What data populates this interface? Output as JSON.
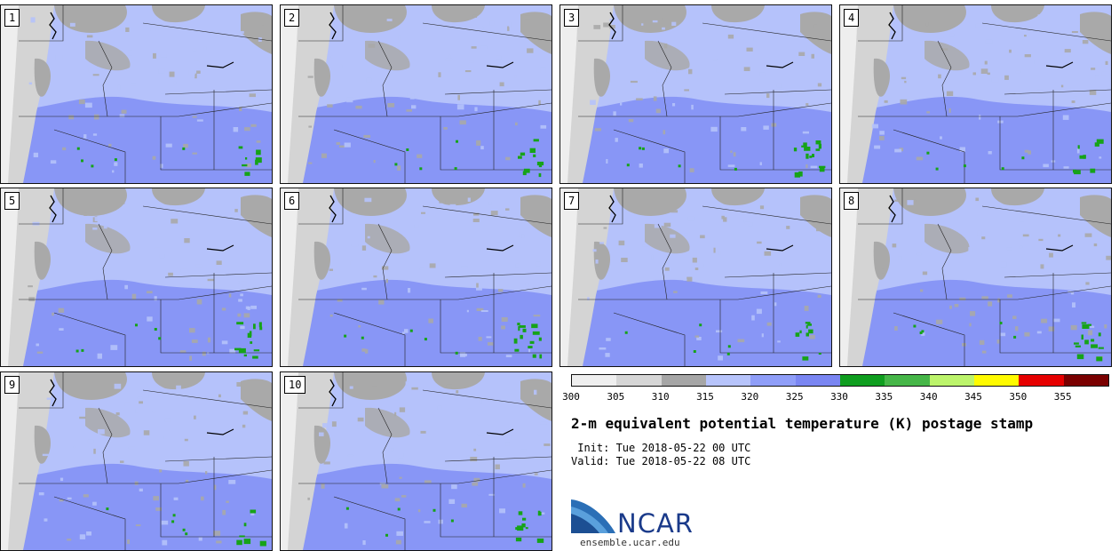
{
  "panels": [
    {
      "label": "1"
    },
    {
      "label": "2"
    },
    {
      "label": "3"
    },
    {
      "label": "4"
    },
    {
      "label": "5"
    },
    {
      "label": "6"
    },
    {
      "label": "7"
    },
    {
      "label": "8"
    },
    {
      "label": "9"
    },
    {
      "label": "10"
    }
  ],
  "colorbar": {
    "ticks": [
      "300",
      "305",
      "310",
      "315",
      "320",
      "325",
      "330",
      "335",
      "340",
      "345",
      "350",
      "355"
    ],
    "colors": [
      "#efefef",
      "#d6d6d6",
      "#a6a6a6",
      "#b7c4fb",
      "#8f9ef8",
      "#7a86f2",
      "#0f9e1f",
      "#46b648",
      "#bcf46b",
      "#fffb00",
      "#e60000",
      "#7a0000"
    ]
  },
  "title": "2-m equivalent potential temperature (K) postage stamp",
  "init": " Init: Tue 2018-05-22 00 UTC",
  "valid": "Valid: Tue 2018-05-22 08 UTC",
  "logo": {
    "name": "NCAR",
    "url": "ensemble.ucar.edu"
  },
  "map_colors": {
    "ocean": "#eeeeee",
    "gray": "#a9a9a9",
    "light_gray": "#d4d4d4",
    "light_blue": "#b5c2fb",
    "mid_blue": "#8896f6",
    "green": "#16a318"
  }
}
